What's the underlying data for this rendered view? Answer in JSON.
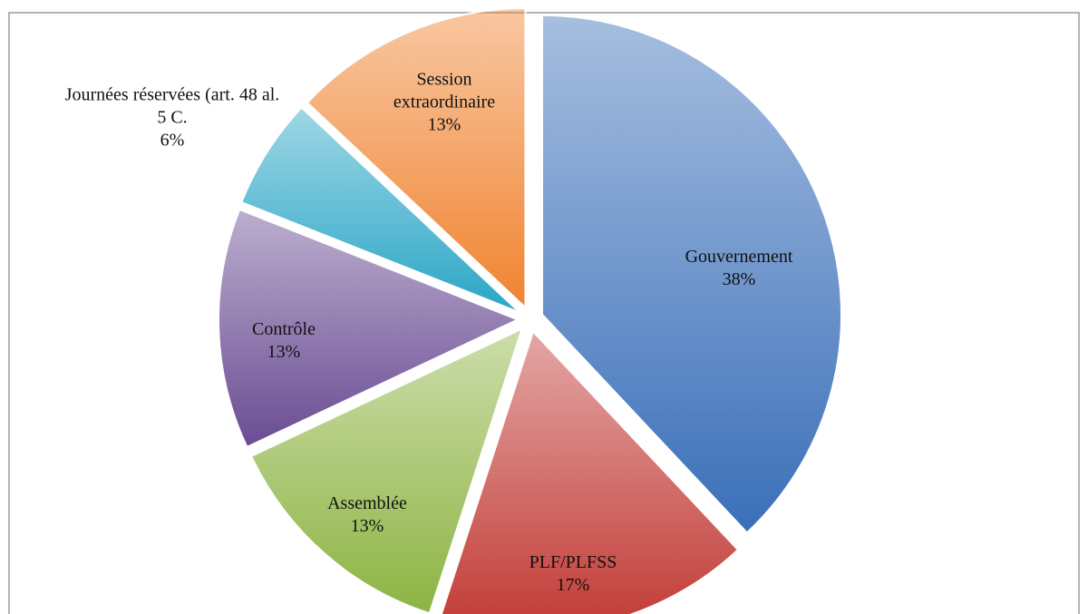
{
  "chart_data": {
    "type": "pie",
    "categories": [
      "Gouvernement",
      "PLF/PLFSS",
      "Assemblée",
      "Contrôle",
      "Journées réservées (art. 48 al. 5 C.",
      "Session extraordinaire"
    ],
    "values": [
      38,
      17,
      13,
      13,
      6,
      13
    ],
    "value_labels": [
      "38%",
      "17%",
      "13%",
      "13%",
      "6%",
      "13%"
    ],
    "colors": [
      "#3a6fb9",
      "#c23a35",
      "#8db443",
      "#6a4c93",
      "#2aa6c6",
      "#f08330"
    ],
    "exploded": true
  }
}
